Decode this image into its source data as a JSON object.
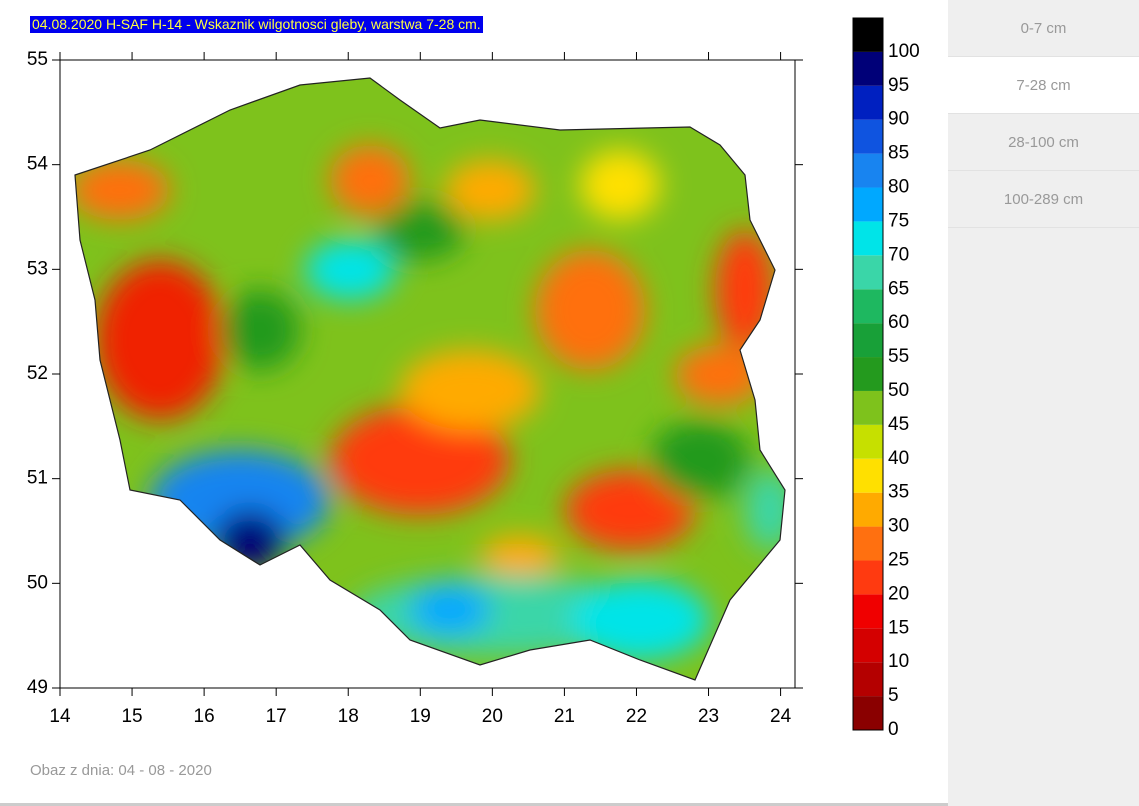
{
  "title": "04.08.2020 H-SAF H-14 - Wskaznik wilgotnosci gleby, warstwa 7-28 cm.",
  "map": {
    "xlim": [
      14,
      24.2
    ],
    "ylim": [
      49,
      55
    ],
    "xticks": [
      14,
      15,
      16,
      17,
      18,
      19,
      20,
      21,
      22,
      23,
      24
    ],
    "yticks": [
      49,
      50,
      51,
      52,
      53,
      54,
      55
    ]
  },
  "colorbar": {
    "levels": [
      0,
      5,
      10,
      15,
      20,
      25,
      30,
      35,
      40,
      45,
      50,
      55,
      60,
      65,
      70,
      75,
      80,
      85,
      90,
      95,
      100
    ],
    "colors": [
      "#8a0000",
      "#b40000",
      "#d40000",
      "#f00000",
      "#ff3a10",
      "#ff7010",
      "#ffaa00",
      "#ffe000",
      "#c6e000",
      "#7ec21c",
      "#249a1e",
      "#18a038",
      "#1eb860",
      "#3ad6a8",
      "#00e4e8",
      "#00a8ff",
      "#1884f0",
      "#0f54e0",
      "#0020c0",
      "#000078",
      "#000000"
    ]
  },
  "tabs": [
    "0-7 cm",
    "7-28 cm",
    "28-100 cm",
    "100-289 cm"
  ],
  "footer": "Obaz z dnia: 04 - 08 - 2020"
}
